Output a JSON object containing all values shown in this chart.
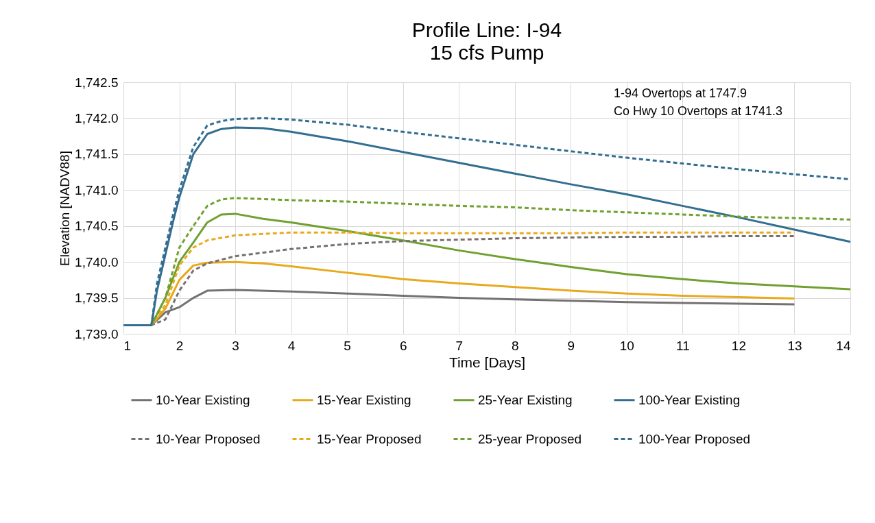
{
  "chart_data": {
    "type": "line",
    "title": "Profile Line: I-94",
    "subtitle": "15 cfs Pump",
    "xlabel": "Time [Days]",
    "ylabel": "Elevation [NADV88]",
    "annotations": [
      "1-94 Overtops at 1747.9",
      "Co Hwy 10 Overtops at 1741.3"
    ],
    "xlim": [
      1,
      14
    ],
    "xticks": [
      1,
      2,
      3,
      4,
      5,
      6,
      7,
      8,
      9,
      10,
      11,
      12,
      13,
      14
    ],
    "ylim": [
      1739.0,
      1742.5
    ],
    "yticks": [
      {
        "value": 1739.0,
        "label": "1,739.0"
      },
      {
        "value": 1739.5,
        "label": "1,739.5"
      },
      {
        "value": 1740.0,
        "label": "1,740.0"
      },
      {
        "value": 1740.5,
        "label": "1,740.5"
      },
      {
        "value": 1741.0,
        "label": "1,741.0"
      },
      {
        "value": 1741.5,
        "label": "1,741.5"
      },
      {
        "value": 1742.0,
        "label": "1,742.0"
      },
      {
        "value": 1742.5,
        "label": "1,742.5"
      }
    ],
    "grid": true,
    "legend": "bottom",
    "marker": "none",
    "series": [
      {
        "name": "10-Year Existing",
        "color": "#767171",
        "line_style": "solid",
        "x": [
          1,
          1.5,
          1.75,
          2,
          2.25,
          2.5,
          3,
          4,
          5,
          6,
          7,
          8,
          9,
          10,
          11,
          12,
          13
        ],
        "values": [
          1739.12,
          1739.12,
          1739.3,
          1739.37,
          1739.5,
          1739.6,
          1739.61,
          1739.59,
          1739.56,
          1739.53,
          1739.5,
          1739.48,
          1739.46,
          1739.44,
          1739.43,
          1739.42,
          1739.41
        ]
      },
      {
        "name": "15-Year Existing",
        "color": "#e9a91d",
        "line_style": "solid",
        "x": [
          1,
          1.5,
          1.75,
          2,
          2.25,
          2.5,
          3,
          3.5,
          4,
          5,
          6,
          7,
          8,
          9,
          10,
          11,
          12,
          13
        ],
        "values": [
          1739.12,
          1739.12,
          1739.35,
          1739.75,
          1739.95,
          1739.99,
          1740.0,
          1739.98,
          1739.94,
          1739.85,
          1739.76,
          1739.7,
          1739.65,
          1739.6,
          1739.56,
          1739.53,
          1739.51,
          1739.49
        ]
      },
      {
        "name": "25-Year Existing",
        "color": "#70a12f",
        "line_style": "solid",
        "x": [
          1,
          1.5,
          1.75,
          2,
          2.25,
          2.5,
          2.75,
          3,
          3.5,
          4,
          5,
          6,
          7,
          8,
          9,
          10,
          11,
          12,
          13,
          14
        ],
        "values": [
          1739.12,
          1739.12,
          1739.5,
          1740.0,
          1740.27,
          1740.55,
          1740.66,
          1740.67,
          1740.6,
          1740.55,
          1740.43,
          1740.3,
          1740.16,
          1740.04,
          1739.93,
          1739.83,
          1739.76,
          1739.7,
          1739.66,
          1739.62
        ]
      },
      {
        "name": "100-Year Existing",
        "color": "#336e91",
        "line_style": "solid",
        "x": [
          1,
          1.5,
          1.6,
          1.75,
          1.9,
          2,
          2.25,
          2.5,
          2.75,
          3,
          3.5,
          4,
          5,
          6,
          7,
          8,
          9,
          10,
          11,
          12,
          13,
          14
        ],
        "values": [
          1739.12,
          1739.12,
          1739.6,
          1740.1,
          1740.6,
          1740.9,
          1741.5,
          1741.78,
          1741.85,
          1741.87,
          1741.86,
          1741.81,
          1741.68,
          1741.53,
          1741.38,
          1741.23,
          1741.08,
          1740.94,
          1740.78,
          1740.62,
          1740.45,
          1740.28
        ]
      },
      {
        "name": "10-Year Proposed",
        "color": "#767171",
        "line_style": "dashed",
        "x": [
          1,
          1.5,
          1.75,
          2,
          2.25,
          2.5,
          3,
          4,
          5,
          6,
          7,
          8,
          9,
          10,
          11,
          12,
          13
        ],
        "values": [
          1739.12,
          1739.12,
          1739.2,
          1739.6,
          1739.88,
          1739.98,
          1740.08,
          1740.18,
          1740.25,
          1740.29,
          1740.31,
          1740.33,
          1740.34,
          1740.35,
          1740.35,
          1740.36,
          1740.36
        ]
      },
      {
        "name": "15-Year Proposed",
        "color": "#e9a91d",
        "line_style": "dashed",
        "x": [
          1,
          1.5,
          1.75,
          2,
          2.25,
          2.5,
          3,
          4,
          5,
          6,
          7,
          8,
          9,
          10,
          11,
          12,
          13
        ],
        "values": [
          1739.12,
          1739.12,
          1739.4,
          1739.95,
          1740.2,
          1740.3,
          1740.37,
          1740.41,
          1740.41,
          1740.4,
          1740.4,
          1740.4,
          1740.4,
          1740.41,
          1740.41,
          1740.41,
          1740.41
        ]
      },
      {
        "name": "25-year Proposed",
        "color": "#70a12f",
        "line_style": "dashed",
        "x": [
          1,
          1.5,
          1.75,
          2,
          2.25,
          2.5,
          2.75,
          3,
          4,
          5,
          6,
          7,
          8,
          9,
          10,
          11,
          12,
          13,
          14
        ],
        "values": [
          1739.12,
          1739.12,
          1739.5,
          1740.2,
          1740.5,
          1740.78,
          1740.87,
          1740.89,
          1740.86,
          1740.84,
          1740.81,
          1740.78,
          1740.76,
          1740.72,
          1740.69,
          1740.66,
          1740.63,
          1740.61,
          1740.59
        ]
      },
      {
        "name": "100-Year Proposed",
        "color": "#336e91",
        "line_style": "dashed",
        "x": [
          1,
          1.5,
          1.6,
          1.75,
          1.9,
          2,
          2.25,
          2.5,
          2.75,
          3,
          3.5,
          4,
          5,
          6,
          7,
          8,
          9,
          10,
          11,
          12,
          13,
          14
        ],
        "values": [
          1739.12,
          1739.12,
          1739.7,
          1740.2,
          1740.7,
          1741.0,
          1741.6,
          1741.9,
          1741.96,
          1741.99,
          1742.0,
          1741.98,
          1741.91,
          1741.81,
          1741.72,
          1741.63,
          1741.54,
          1741.45,
          1741.37,
          1741.29,
          1741.22,
          1741.15
        ]
      }
    ]
  }
}
